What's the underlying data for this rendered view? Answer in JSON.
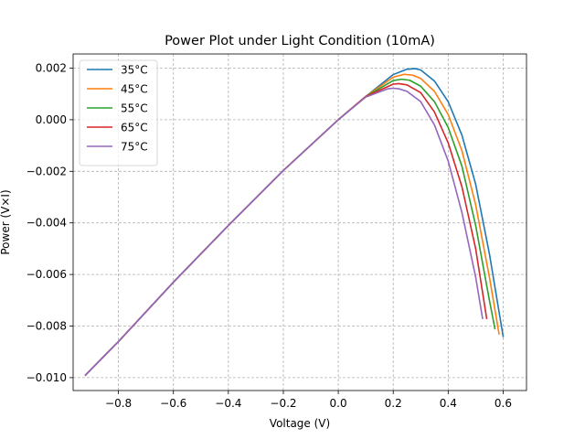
{
  "chart_data": {
    "type": "line",
    "title": "Power Plot under Light Condition (10mA)",
    "xlabel": "Voltage (V)",
    "ylabel": "Power (V×I)",
    "xlim": [
      -0.965,
      0.685
    ],
    "ylim": [
      -0.0105,
      0.00255
    ],
    "xticks": [
      -0.8,
      -0.6,
      -0.4,
      -0.2,
      0.0,
      0.2,
      0.4,
      0.6
    ],
    "xtick_labels": [
      "−0.8",
      "−0.6",
      "−0.4",
      "−0.2",
      "0.0",
      "0.2",
      "0.4",
      "0.6"
    ],
    "yticks": [
      0.002,
      0.0,
      -0.002,
      -0.004,
      -0.006,
      -0.008,
      -0.01
    ],
    "ytick_labels": [
      "0.002",
      "0.000",
      "−0.002",
      "−0.004",
      "−0.006",
      "−0.008",
      "−0.010"
    ],
    "grid": true,
    "legend_position": "top-left",
    "series": [
      {
        "name": "35°C",
        "color": "#1f77b4",
        "x": [
          -0.92,
          -0.8,
          -0.6,
          -0.4,
          -0.2,
          0.0,
          0.1,
          0.2,
          0.25,
          0.28,
          0.3,
          0.35,
          0.4,
          0.45,
          0.5,
          0.55,
          0.6
        ],
        "y": [
          -0.0099,
          -0.0086,
          -0.0063,
          -0.0041,
          -0.00197,
          0.0,
          0.0009,
          0.00175,
          0.00196,
          0.00198,
          0.00193,
          0.0015,
          0.0007,
          -0.0006,
          -0.0025,
          -0.0052,
          -0.0084
        ]
      },
      {
        "name": "45°C",
        "color": "#ff7f0e",
        "x": [
          -0.92,
          -0.8,
          -0.6,
          -0.4,
          -0.2,
          0.0,
          0.1,
          0.2,
          0.24,
          0.27,
          0.3,
          0.35,
          0.4,
          0.45,
          0.5,
          0.55,
          0.585
        ],
        "y": [
          -0.0099,
          -0.0086,
          -0.0063,
          -0.0041,
          -0.00197,
          0.0,
          0.0009,
          0.00165,
          0.00176,
          0.00173,
          0.0016,
          0.0011,
          0.0002,
          -0.0012,
          -0.0033,
          -0.0061,
          -0.0083
        ]
      },
      {
        "name": "55°C",
        "color": "#2ca02c",
        "x": [
          -0.92,
          -0.8,
          -0.6,
          -0.4,
          -0.2,
          0.0,
          0.1,
          0.2,
          0.23,
          0.26,
          0.3,
          0.35,
          0.4,
          0.45,
          0.5,
          0.55,
          0.57
        ],
        "y": [
          -0.0099,
          -0.0086,
          -0.0063,
          -0.0041,
          -0.00197,
          0.0,
          0.0009,
          0.00152,
          0.00157,
          0.00153,
          0.0013,
          0.0007,
          -0.0003,
          -0.0018,
          -0.0041,
          -0.007,
          -0.0081
        ]
      },
      {
        "name": "65°C",
        "color": "#d62728",
        "x": [
          -0.92,
          -0.8,
          -0.6,
          -0.4,
          -0.2,
          0.0,
          0.1,
          0.2,
          0.22,
          0.25,
          0.3,
          0.35,
          0.4,
          0.45,
          0.5,
          0.54
        ],
        "y": [
          -0.0099,
          -0.0086,
          -0.0063,
          -0.0041,
          -0.00197,
          0.0,
          0.0009,
          0.00138,
          0.0014,
          0.00135,
          0.00105,
          0.0003,
          -0.0009,
          -0.0026,
          -0.005,
          -0.0077
        ]
      },
      {
        "name": "75°C",
        "color": "#9467bd",
        "x": [
          -0.92,
          -0.8,
          -0.6,
          -0.4,
          -0.2,
          0.0,
          0.1,
          0.18,
          0.2,
          0.22,
          0.25,
          0.3,
          0.35,
          0.4,
          0.45,
          0.5,
          0.525
        ],
        "y": [
          -0.0099,
          -0.0086,
          -0.0063,
          -0.0041,
          -0.00197,
          0.0,
          0.00088,
          0.0012,
          0.00122,
          0.0012,
          0.0011,
          0.0007,
          -0.0002,
          -0.0016,
          -0.0036,
          -0.0061,
          -0.0077
        ]
      }
    ]
  }
}
